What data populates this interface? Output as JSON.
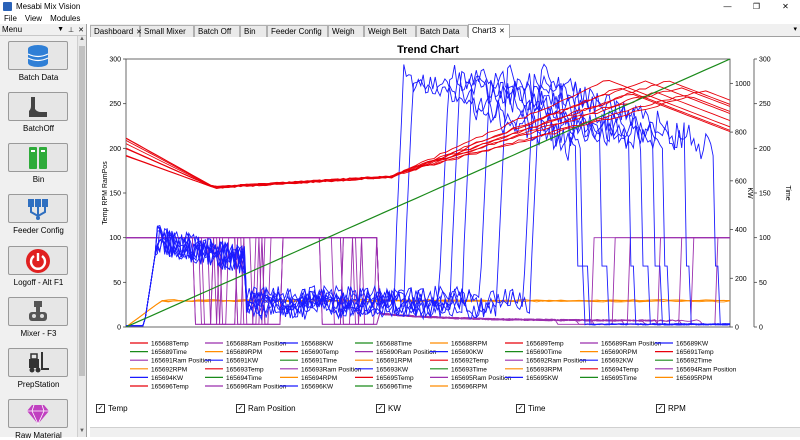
{
  "window": {
    "title": "Mesabi Mix Vision",
    "minimize": "—",
    "restore": "❐",
    "close": "✕"
  },
  "menu": [
    "File",
    "View",
    "Modules"
  ],
  "panel": {
    "title": "Menu",
    "pin_down": "▼",
    "pin": "⊥",
    "close": "✕"
  },
  "nav": [
    {
      "label": "Batch Data",
      "icon": "database-icon",
      "color": "#2f7fd6"
    },
    {
      "label": "BatchOff",
      "icon": "batchoff-icon",
      "color": "#444444"
    },
    {
      "label": "Bin",
      "icon": "bin-icon",
      "color": "#2eab3a"
    },
    {
      "label": "Feeder Config",
      "icon": "feeder-icon",
      "color": "#2f6fc0"
    },
    {
      "label": "Logoff - Alt F1",
      "icon": "power-icon",
      "color": "#e02020"
    },
    {
      "label": "Mixer - F3",
      "icon": "mixer-icon",
      "color": "#555555"
    },
    {
      "label": "PrepStation",
      "icon": "forklift-icon",
      "color": "#333333"
    },
    {
      "label": "Raw Material",
      "icon": "diamond-icon",
      "color": "#c040c0"
    }
  ],
  "tabs": [
    {
      "label": "Dashboard",
      "close": "✕"
    },
    {
      "label": "Small Mixer"
    },
    {
      "label": "Batch Off"
    },
    {
      "label": "Bin"
    },
    {
      "label": "Feeder Config"
    },
    {
      "label": "Weigh"
    },
    {
      "label": "Weigh Belt"
    },
    {
      "label": "Batch Data"
    },
    {
      "label": "Chart3",
      "close": "✕",
      "active": true
    }
  ],
  "tab_menu": "▾",
  "chart_data": {
    "type": "line",
    "title": "Trend Chart",
    "ylabel_left": "Temp RPM RamPos",
    "ylabel_right1": "KW",
    "ylabel_right2": "Time",
    "y_left_ticks": [
      0,
      50,
      100,
      150,
      200,
      250,
      300
    ],
    "y_right1_ticks": [
      0,
      200,
      400,
      600,
      800,
      1000
    ],
    "y_right2_ticks": [
      0,
      50,
      100,
      150,
      200,
      250,
      300
    ],
    "ylim_left": [
      0,
      300
    ],
    "ylim_right1": [
      0,
      1100
    ],
    "ylim_right2": [
      0,
      300
    ],
    "grid": false,
    "series_colors": {
      "Temp": "#e8000b",
      "Ram Position": "#9b2fae",
      "KW": "#1a1aff",
      "Time": "#1a8a1a",
      "RPM": "#ff8c00"
    },
    "legend": [
      "165688Temp",
      "165688Ram Position",
      "165688KW",
      "165688Time",
      "165688RPM",
      "165689Temp",
      "165689Ram Position",
      "165689KW",
      "165689Time",
      "165689RPM",
      "165690Temp",
      "165690Ram Position",
      "165690KW",
      "165690Time",
      "165690RPM",
      "165691Temp",
      "165691Ram Position",
      "165691KW",
      "165691Time",
      "165691RPM",
      "165692Temp",
      "165692Ram Position",
      "165692KW",
      "165692Time",
      "165692RPM",
      "165693Temp",
      "165693Ram Position",
      "165693KW",
      "165693Time",
      "165693RPM",
      "165694Temp",
      "165694Ram Position",
      "165694KW",
      "165694Time",
      "165694RPM",
      "165695Temp",
      "165695Ram Position",
      "165695KW",
      "165695Time",
      "165695RPM",
      "165696Temp",
      "165696Ram Position",
      "165696KW",
      "165696Time",
      "165696RPM"
    ]
  },
  "filters": [
    {
      "label": "Temp",
      "checked": "✓"
    },
    {
      "label": "Ram Position",
      "checked": "✓"
    },
    {
      "label": "KW",
      "checked": "✓"
    },
    {
      "label": "Time",
      "checked": "✓"
    },
    {
      "label": "RPM",
      "checked": "✓"
    }
  ],
  "scroll": {
    "up": "▲",
    "down": "▼"
  }
}
